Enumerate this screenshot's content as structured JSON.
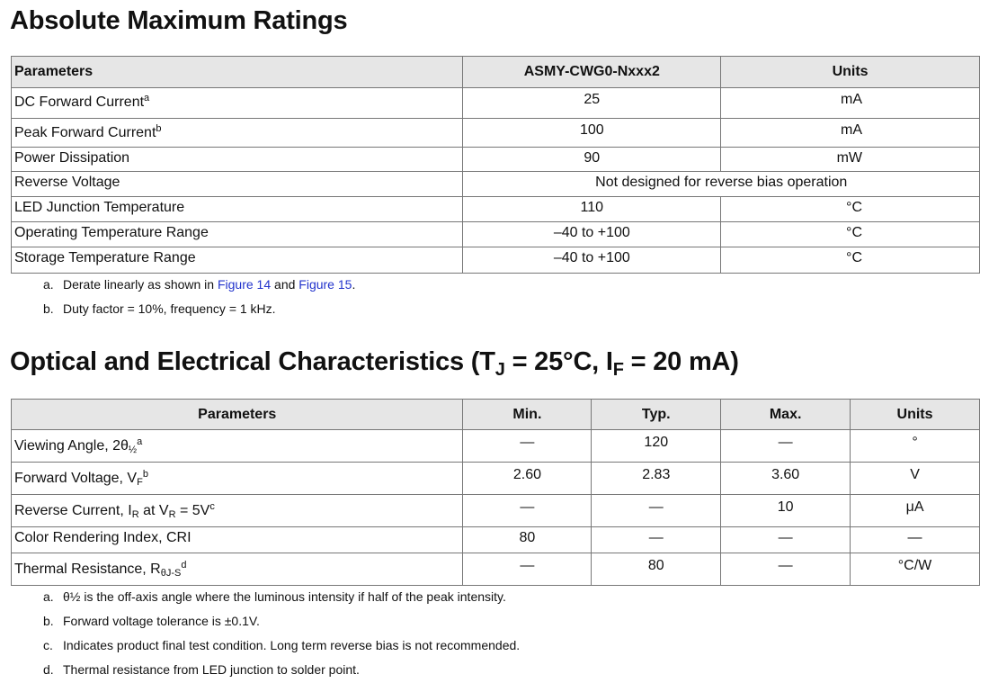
{
  "section1": {
    "title": "Absolute Maximum Ratings",
    "headers": [
      "Parameters",
      "ASMY-CWG0-Nxxx2",
      "Units"
    ],
    "rows": [
      {
        "param": [
          {
            "t": "DC Forward Current"
          },
          {
            "sup": "a"
          }
        ],
        "value": "25",
        "unit": "mA"
      },
      {
        "param": [
          {
            "t": "Peak Forward Current"
          },
          {
            "sup": "b"
          }
        ],
        "value": "100",
        "unit": "mA"
      },
      {
        "param": [
          {
            "t": "Power Dissipation"
          }
        ],
        "value": "90",
        "unit": "mW"
      },
      {
        "param": [
          {
            "t": "Reverse Voltage"
          }
        ],
        "value": "Not designed for reverse bias operation",
        "unit": ""
      },
      {
        "param": [
          {
            "t": "LED Junction Temperature"
          }
        ],
        "value": "110",
        "unit": "°C"
      },
      {
        "param": [
          {
            "t": "Operating Temperature Range"
          }
        ],
        "value": "–40 to +100",
        "unit": "°C"
      },
      {
        "param": [
          {
            "t": "Storage Temperature Range"
          }
        ],
        "value": "–40 to +100",
        "unit": "°C"
      }
    ],
    "footnotes": {
      "a": {
        "key": "a.",
        "pre": "Derate linearly as shown in ",
        "link1": "Figure 14",
        "mid": " and ",
        "link2": "Figure 15",
        "post": "."
      },
      "b": {
        "key": "b.",
        "text": "Duty factor = 10%, frequency = 1 kHz."
      }
    }
  },
  "section2": {
    "title": {
      "pre": "Optical and Electrical Characteristics (T",
      "sub1": "J",
      "mid": " = 25°C, I",
      "sub2": "F",
      "post": " = 20 mA)"
    },
    "headers": [
      "Parameters",
      "Min.",
      "Typ.",
      "Max.",
      "Units"
    ],
    "rows": [
      {
        "param": [
          {
            "t": "Viewing Angle, 2θ"
          },
          {
            "sub": "½"
          },
          {
            "sup": "a"
          }
        ],
        "min": "—",
        "typ": "120",
        "max": "—",
        "unit": "°"
      },
      {
        "param": [
          {
            "t": "Forward Voltage, V"
          },
          {
            "sub": "F"
          },
          {
            "sup": "b"
          }
        ],
        "min": "2.60",
        "typ": "2.83",
        "max": "3.60",
        "unit": "V"
      },
      {
        "param": [
          {
            "t": "Reverse Current, I"
          },
          {
            "sub": "R"
          },
          {
            "t": " at V"
          },
          {
            "sub": "R"
          },
          {
            "t": " = 5V"
          },
          {
            "sup": "c"
          }
        ],
        "min": "—",
        "typ": "—",
        "max": "10",
        "unit": "μA"
      },
      {
        "param": [
          {
            "t": "Color Rendering Index, CRI"
          }
        ],
        "min": "80",
        "typ": "—",
        "max": "—",
        "unit": "—"
      },
      {
        "param": [
          {
            "t": "Thermal Resistance, R"
          },
          {
            "sub": "θJ-S"
          },
          {
            "sup": "d"
          }
        ],
        "min": "—",
        "typ": "80",
        "max": "—",
        "unit": "°C/W"
      }
    ],
    "footnotes": [
      {
        "key": "a.",
        "text": "θ½ is the off-axis angle where the luminous intensity if half of the peak intensity."
      },
      {
        "key": "b.",
        "text": "Forward voltage tolerance is ±0.1V."
      },
      {
        "key": "c.",
        "text": "Indicates product final test condition. Long term reverse bias is not recommended."
      },
      {
        "key": "d.",
        "text": "Thermal resistance from LED junction to solder point."
      }
    ]
  },
  "colors": {
    "header_bg": "#e6e6e6",
    "link": "#2233cc",
    "border": "#777777"
  }
}
